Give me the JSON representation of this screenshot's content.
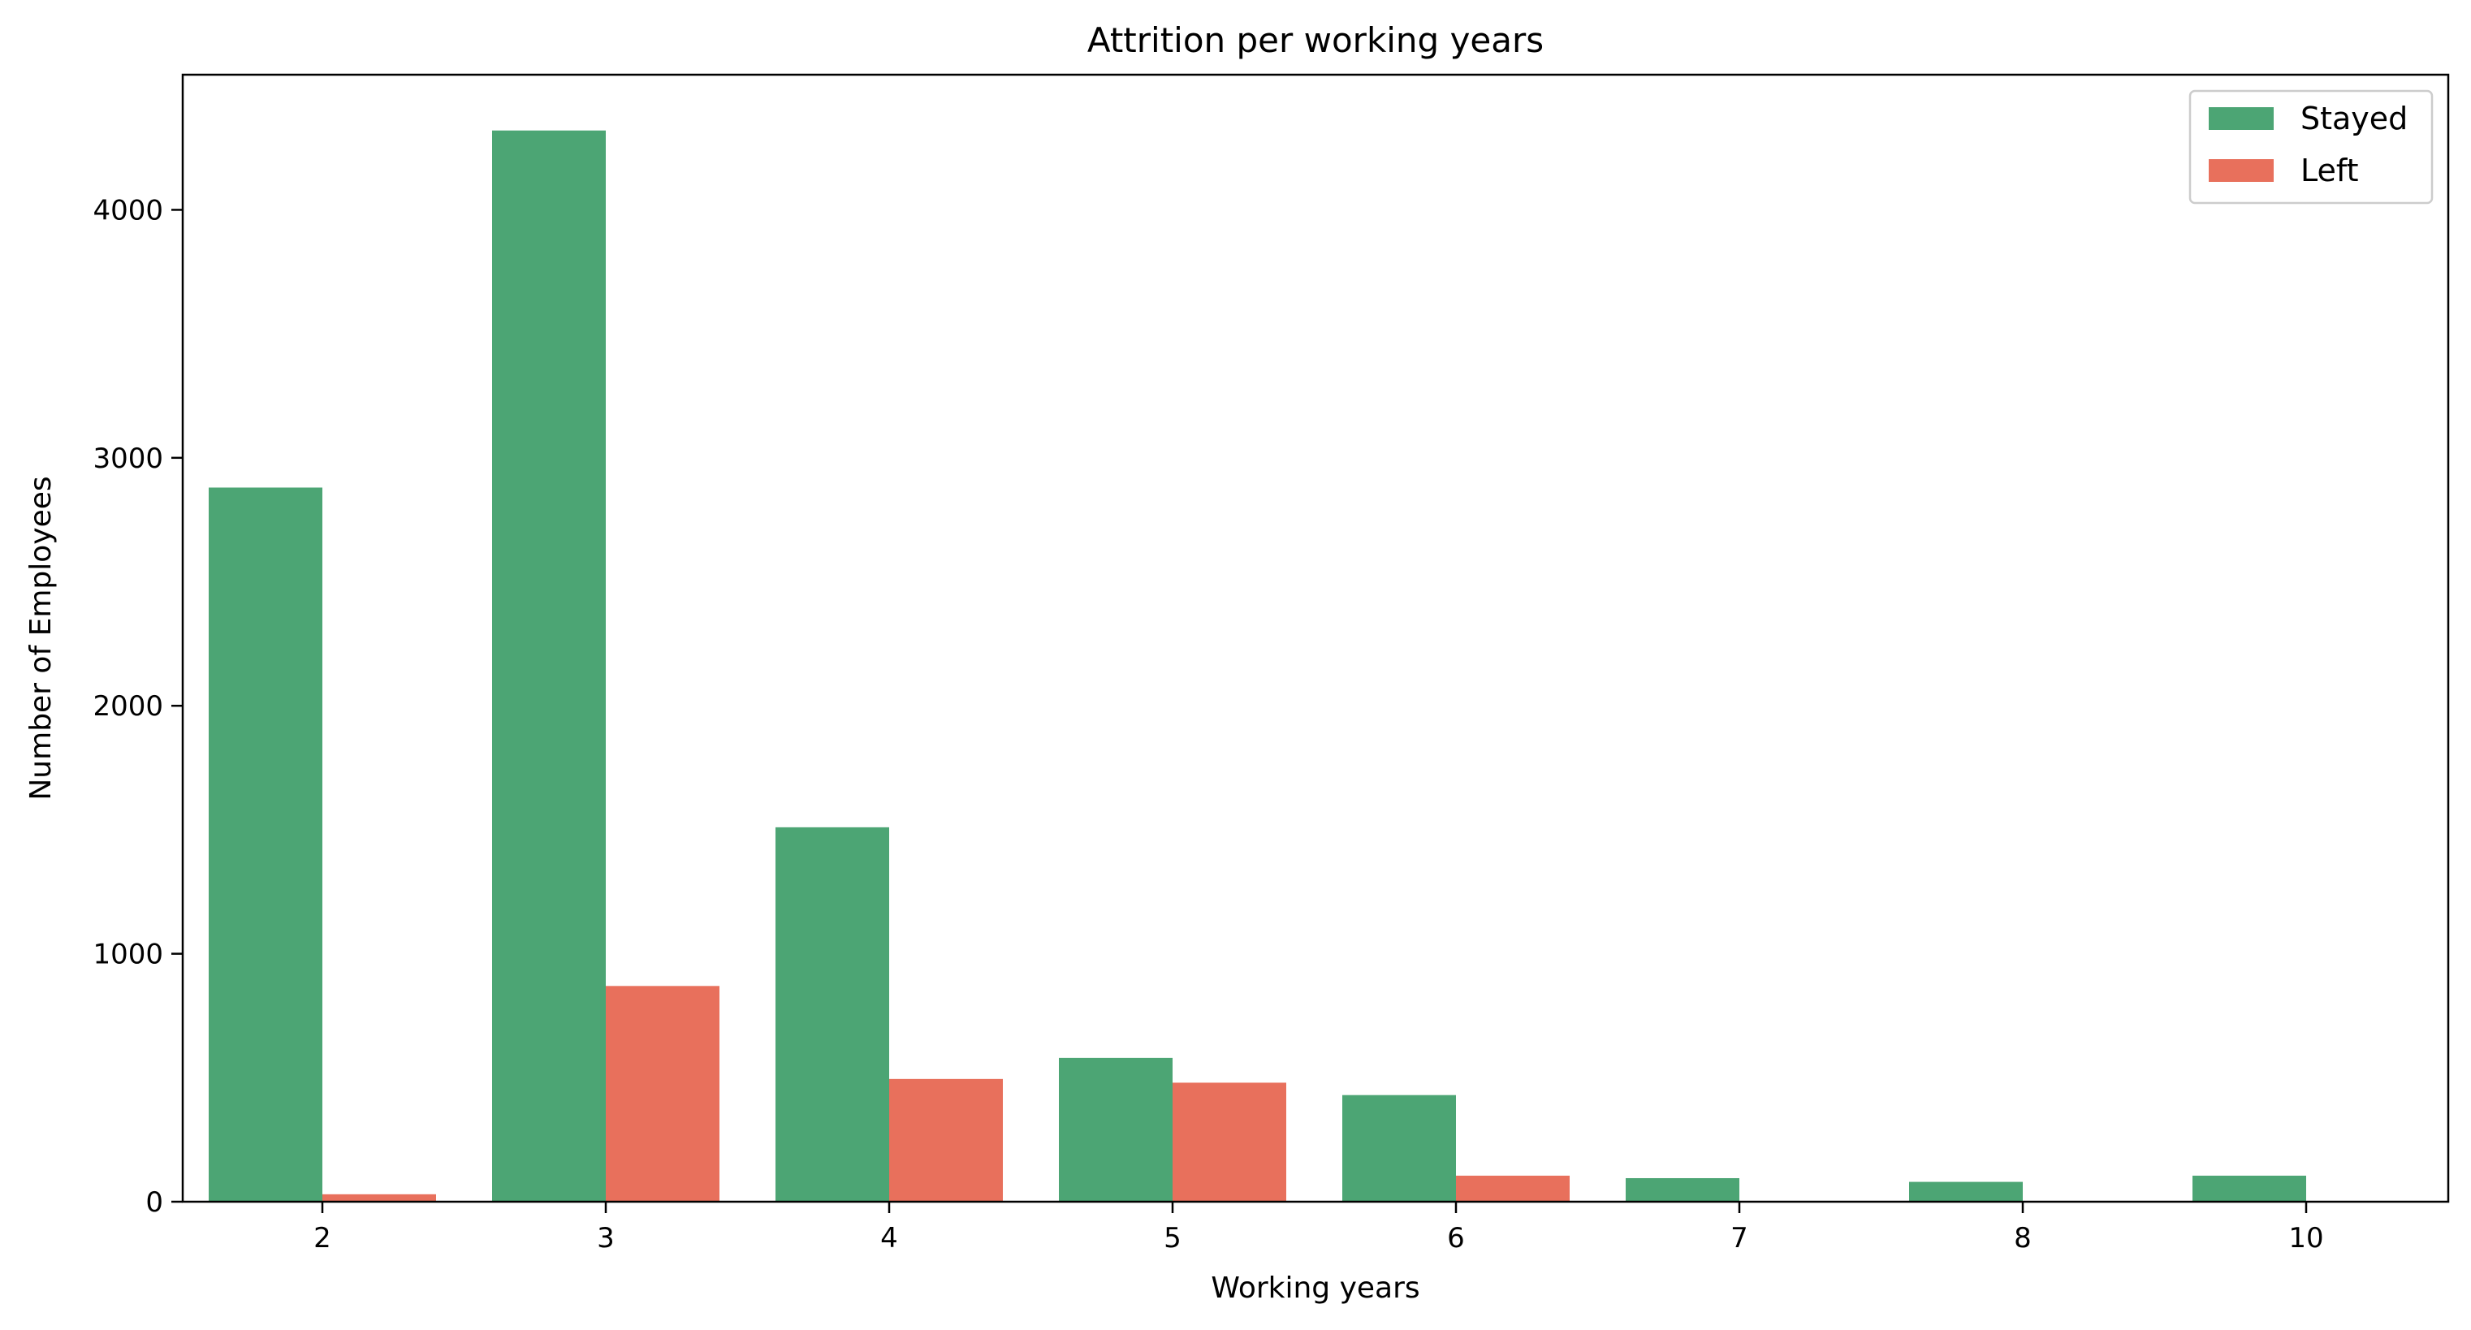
{
  "chart_data": {
    "type": "bar",
    "title": "Attrition per working years",
    "xlabel": "Working years",
    "ylabel": "Number of Employees",
    "categories": [
      "2",
      "3",
      "4",
      "5",
      "6",
      "7",
      "8",
      "10"
    ],
    "series": [
      {
        "name": "Stayed",
        "color": "#4ca574",
        "values": [
          2880,
          4320,
          1510,
          580,
          430,
          95,
          80,
          105
        ]
      },
      {
        "name": "Left",
        "color": "#e8705c",
        "values": [
          30,
          870,
          495,
          480,
          105,
          0,
          0,
          0
        ]
      }
    ],
    "ylim": [
      0,
      4545
    ],
    "yticks": [
      0,
      1000,
      2000,
      3000,
      4000
    ],
    "grid": false,
    "legend_position": "top-right"
  }
}
